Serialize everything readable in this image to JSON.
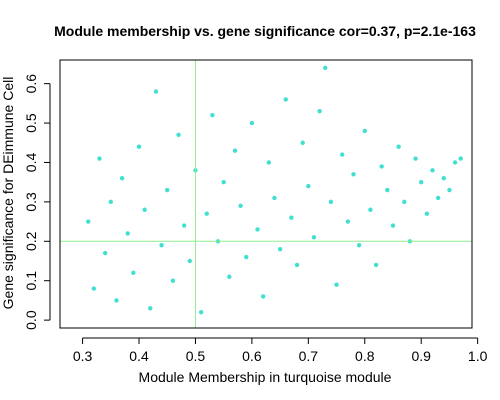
{
  "chart_data": {
    "type": "scatter",
    "title": "Module membership vs. gene significance cor=0.37, p=2.1e-163",
    "xlabel": "Module Membership in turquoise module",
    "ylabel": "Gene significance for DEimmune Cell",
    "xlim": [
      0.26,
      0.99
    ],
    "ylim": [
      -0.02,
      0.66
    ],
    "xticks": [
      "0.3",
      "0.4",
      "0.5",
      "0.6",
      "0.7",
      "0.8",
      "0.9",
      "1.0"
    ],
    "yticks": [
      "0.0",
      "0.1",
      "0.2",
      "0.3",
      "0.4",
      "0.5",
      "0.6"
    ],
    "point_color": "#40e0d0",
    "reference_line_color": "#90ee90",
    "reference_lines": {
      "vertical_x": 0.5,
      "horizontal_y": 0.2
    },
    "series": [
      {
        "points": [
          [
            0.31,
            0.25
          ],
          [
            0.32,
            0.08
          ],
          [
            0.33,
            0.41
          ],
          [
            0.34,
            0.17
          ],
          [
            0.35,
            0.3
          ],
          [
            0.36,
            0.05
          ],
          [
            0.37,
            0.36
          ],
          [
            0.38,
            0.22
          ],
          [
            0.39,
            0.12
          ],
          [
            0.4,
            0.44
          ],
          [
            0.41,
            0.28
          ],
          [
            0.42,
            0.03
          ],
          [
            0.43,
            0.58
          ],
          [
            0.44,
            0.19
          ],
          [
            0.45,
            0.33
          ],
          [
            0.46,
            0.1
          ],
          [
            0.47,
            0.47
          ],
          [
            0.48,
            0.24
          ],
          [
            0.49,
            0.15
          ],
          [
            0.5,
            0.38
          ],
          [
            0.51,
            0.02
          ],
          [
            0.52,
            0.27
          ],
          [
            0.53,
            0.52
          ],
          [
            0.54,
            0.2
          ],
          [
            0.55,
            0.35
          ],
          [
            0.56,
            0.11
          ],
          [
            0.57,
            0.43
          ],
          [
            0.58,
            0.29
          ],
          [
            0.59,
            0.16
          ],
          [
            0.6,
            0.5
          ],
          [
            0.61,
            0.23
          ],
          [
            0.62,
            0.06
          ],
          [
            0.63,
            0.4
          ],
          [
            0.64,
            0.31
          ],
          [
            0.65,
            0.18
          ],
          [
            0.66,
            0.56
          ],
          [
            0.67,
            0.26
          ],
          [
            0.68,
            0.14
          ],
          [
            0.69,
            0.45
          ],
          [
            0.7,
            0.34
          ],
          [
            0.71,
            0.21
          ],
          [
            0.72,
            0.53
          ],
          [
            0.73,
            0.64
          ],
          [
            0.74,
            0.3
          ],
          [
            0.75,
            0.09
          ],
          [
            0.76,
            0.42
          ],
          [
            0.77,
            0.25
          ],
          [
            0.78,
            0.37
          ],
          [
            0.79,
            0.19
          ],
          [
            0.8,
            0.48
          ],
          [
            0.81,
            0.28
          ],
          [
            0.82,
            0.14
          ],
          [
            0.83,
            0.39
          ],
          [
            0.84,
            0.33
          ],
          [
            0.85,
            0.24
          ],
          [
            0.86,
            0.44
          ],
          [
            0.87,
            0.3
          ],
          [
            0.88,
            0.2
          ],
          [
            0.89,
            0.41
          ],
          [
            0.9,
            0.35
          ],
          [
            0.91,
            0.27
          ],
          [
            0.92,
            0.38
          ],
          [
            0.93,
            0.31
          ],
          [
            0.94,
            0.36
          ],
          [
            0.95,
            0.33
          ],
          [
            0.96,
            0.4
          ],
          [
            0.97,
            0.41
          ]
        ]
      }
    ]
  }
}
